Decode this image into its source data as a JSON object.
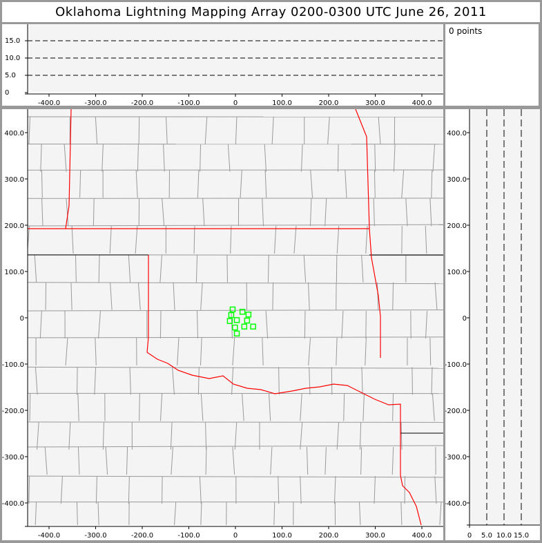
{
  "title": "Oklahoma Lightning Mapping Array   0200-0300 UTC  June 26, 2011",
  "info": {
    "point_count": "0 points"
  },
  "colors": {
    "state_border": "#ff0000",
    "county_border": "#999999",
    "points": "#00ff00",
    "plot_bg": "#f4f4f4",
    "frame": "#999999"
  },
  "top_panel": {
    "x_ticks": [
      "-400.0",
      "-300.0",
      "-200.0",
      "-100.0",
      "0",
      "100.0",
      "200.0",
      "300.0",
      "400.0"
    ],
    "y_ticks": [
      "0",
      "5.0",
      "10.0",
      "15.0"
    ],
    "dashed_lines_at": [
      5,
      10,
      15
    ]
  },
  "main_panel": {
    "x_ticks": [
      "-400.0",
      "-300.0",
      "-200.0",
      "-100.0",
      "0",
      "100.0",
      "200.0",
      "300.0",
      "400.0"
    ],
    "y_ticks": [
      "400.0",
      "300.0",
      "200.0",
      "100.0",
      "0",
      "-100.0",
      "-200.0",
      "-300.0",
      "-400.0"
    ],
    "xlim": [
      -450,
      440
    ],
    "ylim": [
      -445,
      445
    ],
    "points_km": [
      [
        -6,
        18
      ],
      [
        15,
        13
      ],
      [
        28,
        7
      ],
      [
        -9,
        6
      ],
      [
        3,
        -5
      ],
      [
        -12,
        -7
      ],
      [
        25,
        -6
      ],
      [
        -1,
        -21
      ],
      [
        19,
        -19
      ],
      [
        38,
        -19
      ],
      [
        3,
        -34
      ]
    ]
  },
  "right_panel": {
    "x_ticks": [
      "0",
      "5.0",
      "10.0",
      "15.0"
    ],
    "y_ticks": [
      "400.0",
      "300.0",
      "200.0",
      "100.0",
      "0",
      "-100.0",
      "-200.0",
      "-300.0",
      "-400.0"
    ],
    "dashed_lines_at": [
      5,
      10,
      15
    ]
  }
}
